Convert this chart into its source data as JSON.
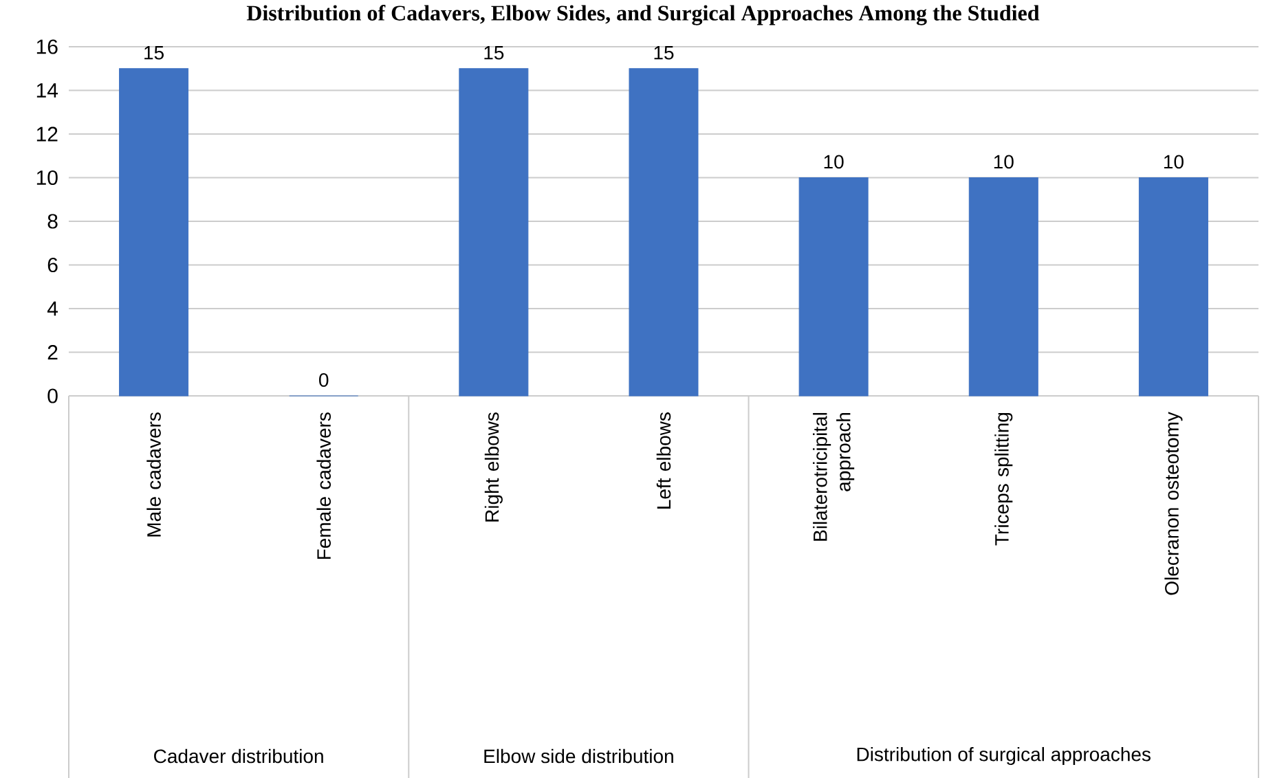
{
  "chart_data": {
    "type": "bar",
    "title": "Distribution of Cadavers, Elbow Sides, and Surgical Approaches Among the Studied",
    "categories": [
      "Male cadavers",
      "Female cadavers",
      "Right elbows",
      "Left elbows",
      "Bilaterotricipital approach",
      "Triceps splitting",
      "Olecranon osteotomy"
    ],
    "values": [
      15,
      0,
      15,
      15,
      10,
      10,
      10
    ],
    "color": "#3f72c2",
    "ylim": [
      0,
      16
    ],
    "yticks": [
      0,
      2,
      4,
      6,
      8,
      10,
      12,
      14,
      16
    ],
    "grid": "y",
    "data_labels": true,
    "annotations": [
      "Cadaver distribution",
      "Elbow side distribution",
      "Distribution of surgical approaches"
    ]
  }
}
